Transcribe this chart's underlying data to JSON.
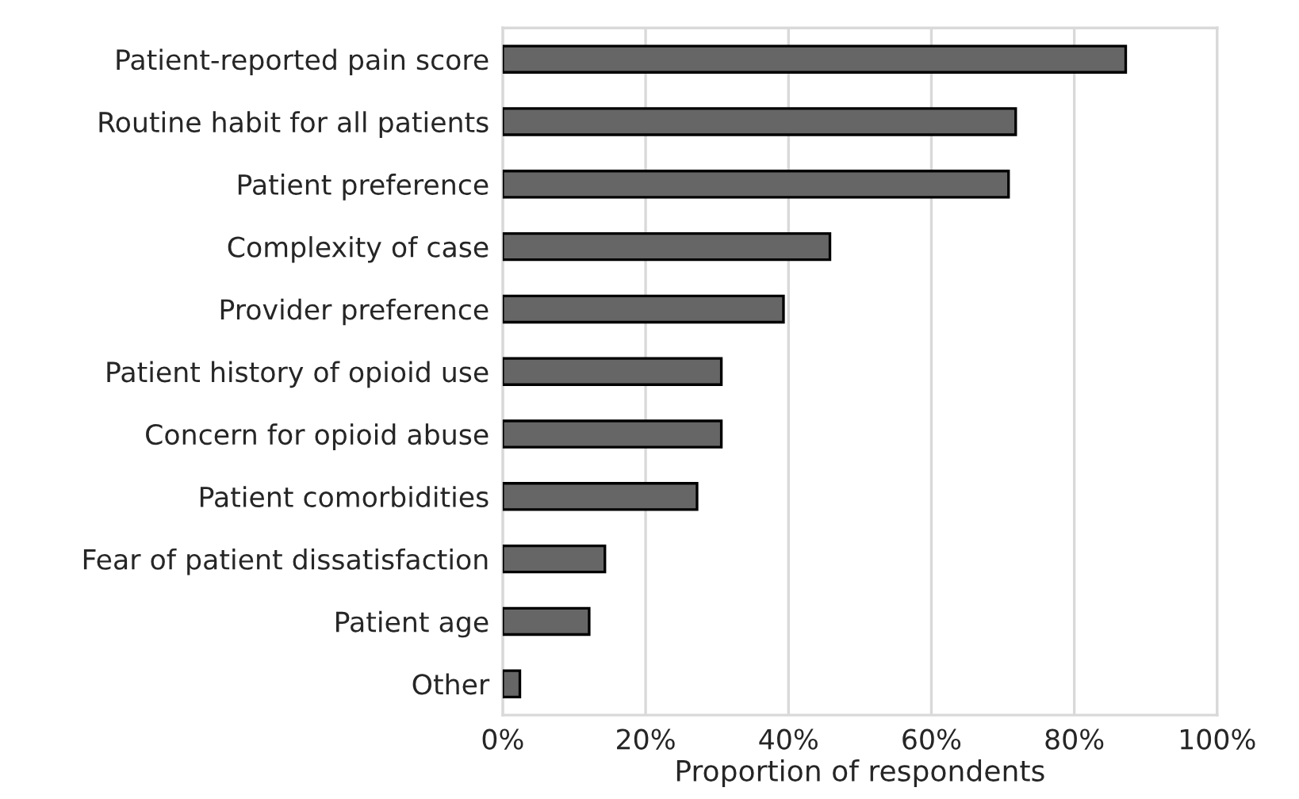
{
  "chart_data": {
    "type": "bar",
    "orientation": "horizontal",
    "xlabel": "Proportion of respondents",
    "categories": [
      "Patient-reported pain score",
      "Routine habit for all patients",
      "Patient preference",
      "Complexity of case",
      "Provider preference",
      "Patient history of opioid use",
      "Concern for opioid abuse",
      "Patient comorbidities",
      "Fear of patient dissatisfaction",
      "Patient age",
      "Other"
    ],
    "values": [
      87.2,
      71.8,
      70.8,
      45.8,
      39.3,
      30.6,
      30.6,
      27.2,
      14.3,
      12.1,
      2.4
    ],
    "color": "#666666",
    "xlim": [
      0,
      100
    ],
    "xticks": [
      {
        "value": 0,
        "label": "0%"
      },
      {
        "value": 20,
        "label": "20%"
      },
      {
        "value": 40,
        "label": "40%"
      },
      {
        "value": 60,
        "label": "60%"
      },
      {
        "value": 80,
        "label": "80%"
      },
      {
        "value": 100,
        "label": "100%"
      }
    ],
    "grid": "x"
  }
}
